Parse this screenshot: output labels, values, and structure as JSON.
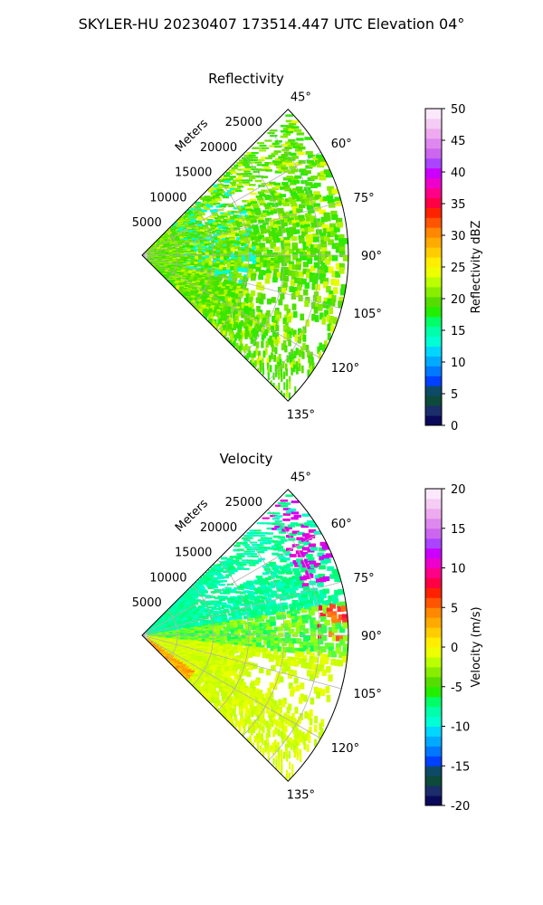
{
  "figure_title": "SKYLER-HU  20230407  173514.447 UTC Elevation 04°",
  "chart_data": [
    {
      "type": "polar-sector",
      "title": "Reflectivity",
      "range_label": "Meters",
      "range_ticks": [
        "5000",
        "10000",
        "15000",
        "20000",
        "25000"
      ],
      "range_values": [
        5000,
        10000,
        15000,
        20000,
        25000
      ],
      "rmax": 29000,
      "angle_ticks": [
        "45°",
        "60°",
        "75°",
        "90°",
        "105°",
        "120°",
        "135°"
      ],
      "angle_values": [
        45,
        60,
        75,
        90,
        105,
        120,
        135
      ],
      "angle_range": [
        45,
        135
      ],
      "grid": true,
      "colorbar": {
        "label": "Reflectivity dBZ",
        "ticks": [
          "0",
          "5",
          "10",
          "15",
          "20",
          "25",
          "30",
          "35",
          "40",
          "45",
          "50"
        ],
        "range": [
          0,
          50
        ]
      },
      "colors": [
        "#0a0a5a",
        "#1b2d6b",
        "#0c4a3a",
        "#0c4a66",
        "#0040ff",
        "#0078ff",
        "#00aaff",
        "#00d6ff",
        "#00ffd5",
        "#00ffaa",
        "#00ff66",
        "#22ee00",
        "#55dd00",
        "#88ee00",
        "#bbff00",
        "#eeff00",
        "#ffee00",
        "#ffcc00",
        "#ffaa00",
        "#ff8800",
        "#ff5500",
        "#ff2200",
        "#ff0044",
        "#ff0088",
        "#ee00cc",
        "#cc00ff",
        "#aa44ff",
        "#cc66ee",
        "#dd88ee",
        "#eeaaee",
        "#f4ccf4",
        "#fbe8fb"
      ]
    },
    {
      "type": "polar-sector",
      "title": "Velocity",
      "range_label": "Meters",
      "range_ticks": [
        "5000",
        "10000",
        "15000",
        "20000",
        "25000"
      ],
      "range_values": [
        5000,
        10000,
        15000,
        20000,
        25000
      ],
      "rmax": 29000,
      "angle_ticks": [
        "45°",
        "60°",
        "75°",
        "90°",
        "105°",
        "120°",
        "135°"
      ],
      "angle_values": [
        45,
        60,
        75,
        90,
        105,
        120,
        135
      ],
      "angle_range": [
        45,
        135
      ],
      "grid": true,
      "colorbar": {
        "label": "Velocity (m/s)",
        "ticks": [
          "-20",
          "-15",
          "-10",
          "-5",
          "0",
          "5",
          "10",
          "15",
          "20"
        ],
        "range": [
          -20,
          20
        ]
      },
      "colors": [
        "#0a0a5a",
        "#1b2d6b",
        "#0c4a3a",
        "#0c4a66",
        "#0040ff",
        "#0078ff",
        "#00aaff",
        "#00d6ff",
        "#00ffd5",
        "#00ffaa",
        "#00ff66",
        "#22ee00",
        "#55dd00",
        "#88ee00",
        "#bbff00",
        "#eeff00",
        "#ffee00",
        "#ffcc00",
        "#ffaa00",
        "#ff8800",
        "#ff5500",
        "#ff2200",
        "#ff0044",
        "#ff0088",
        "#ee00cc",
        "#cc00ff",
        "#aa44ff",
        "#cc66ee",
        "#dd88ee",
        "#eeaaee",
        "#f4ccf4",
        "#fbe8fb"
      ]
    }
  ]
}
